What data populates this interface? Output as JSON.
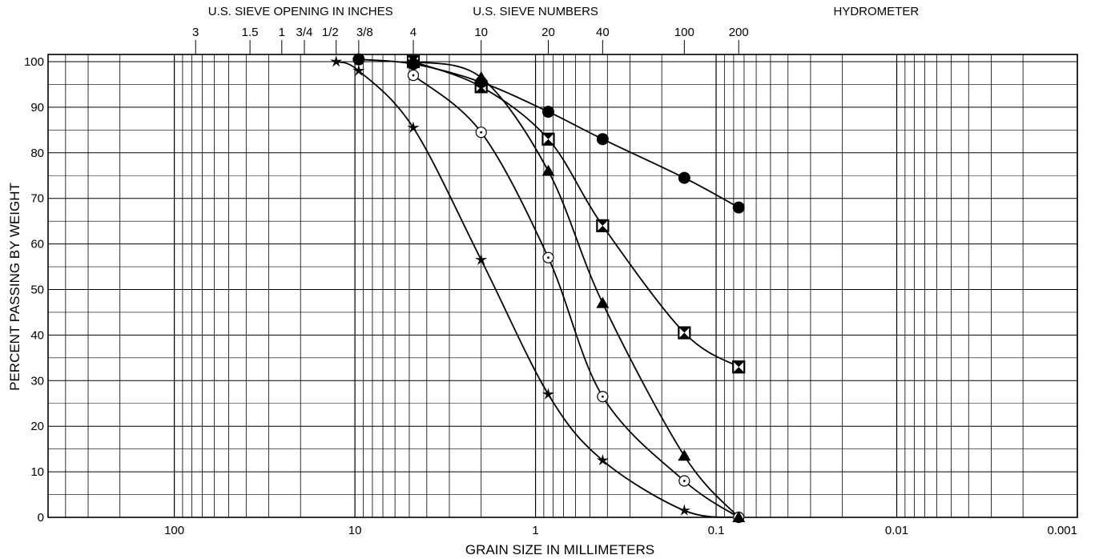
{
  "chart_data": {
    "type": "line",
    "x_scale": "log",
    "x_reversed": true,
    "xlim": [
      500,
      0.001
    ],
    "ylim": [
      0,
      100
    ],
    "grid": true,
    "legend": "none",
    "xlabel": "GRAIN SIZE IN MILLIMETERS",
    "ylabel": "PERCENT PASSING BY WEIGHT",
    "top_headers": [
      {
        "text": "U.S. SIEVE OPENING IN INCHES",
        "x": 20
      },
      {
        "text": "U.S. SIEVE NUMBERS",
        "x": 1.0
      },
      {
        "text": "HYDROMETER",
        "x": 0.013
      }
    ],
    "sieve_ticks": [
      {
        "label": "3",
        "x": 76.2
      },
      {
        "label": "1.5",
        "x": 38.1
      },
      {
        "label": "1",
        "x": 25.4
      },
      {
        "label": "3/4",
        "x": 19.05
      },
      {
        "label": "1/2",
        "x": 12.7
      },
      {
        "label": "3/8",
        "x": 9.525
      },
      {
        "label": "4",
        "x": 4.75
      },
      {
        "label": "10",
        "x": 2.0
      },
      {
        "label": "20",
        "x": 0.85
      },
      {
        "label": "40",
        "x": 0.425
      },
      {
        "label": "100",
        "x": 0.15
      },
      {
        "label": "200",
        "x": 0.075
      }
    ],
    "x_tick_labels": [
      {
        "label": "100",
        "x": 100
      },
      {
        "label": "10",
        "x": 10
      },
      {
        "label": "1",
        "x": 1
      },
      {
        "label": "0.1",
        "x": 0.1
      },
      {
        "label": "0.01",
        "x": 0.01
      },
      {
        "label": "0.001",
        "x": 0.001
      }
    ],
    "y_ticks": [
      0,
      10,
      20,
      30,
      40,
      50,
      60,
      70,
      80,
      90,
      100
    ],
    "series": [
      {
        "marker": "star",
        "x": [
          12.7,
          9.525,
          4.75,
          2.0,
          0.85,
          0.425,
          0.15,
          0.075
        ],
        "y": [
          100,
          98,
          85.5,
          56.5,
          27,
          12.5,
          1.5,
          0
        ]
      },
      {
        "marker": "open-circle",
        "x": [
          4.75,
          2.0,
          0.85,
          0.425,
          0.15,
          0.075
        ],
        "y": [
          97,
          84.5,
          57,
          26.5,
          8,
          0
        ]
      },
      {
        "marker": "filled-triangle",
        "x": [
          4.75,
          2.0,
          0.85,
          0.425,
          0.15,
          0.075
        ],
        "y": [
          100,
          96.5,
          76,
          47,
          13.5,
          0
        ]
      },
      {
        "marker": "box-x",
        "x": [
          4.75,
          2.0,
          0.85,
          0.425,
          0.15,
          0.075
        ],
        "y": [
          100,
          94.5,
          83,
          64,
          40.5,
          33
        ]
      },
      {
        "marker": "filled-circle",
        "x": [
          9.525,
          4.75,
          2.0,
          0.85,
          0.425,
          0.15,
          0.075
        ],
        "y": [
          100.5,
          99.5,
          95.5,
          89,
          83,
          74.5,
          68
        ]
      }
    ]
  }
}
